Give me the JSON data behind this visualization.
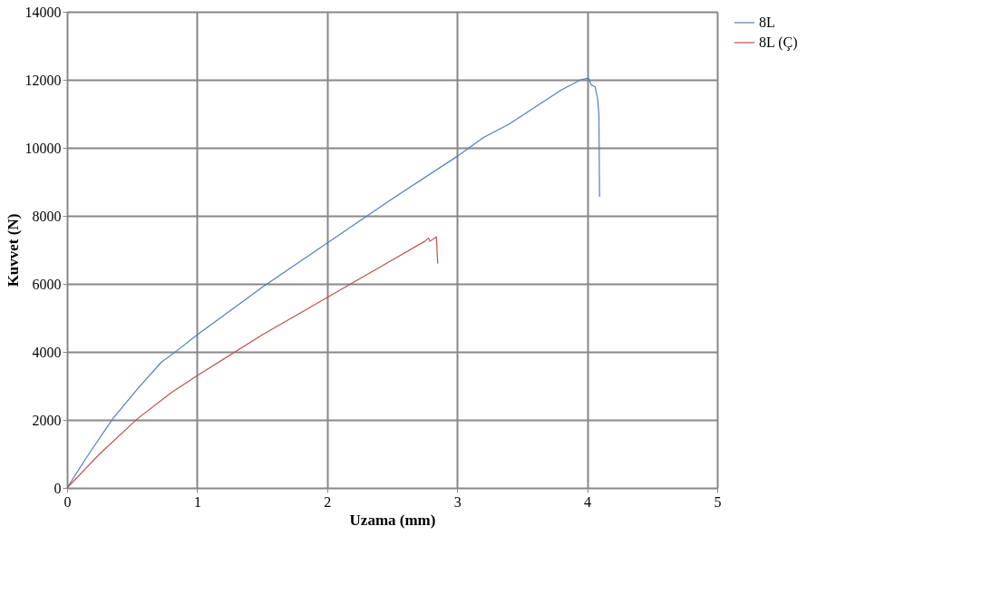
{
  "chart_data": {
    "type": "line",
    "xlabel": "Uzama (mm)",
    "ylabel": "Kuvvet (N)",
    "xlim": [
      0,
      5
    ],
    "xticks": [
      0,
      1,
      2,
      3,
      4,
      5
    ],
    "ylim": [
      0,
      14000
    ],
    "yticks": [
      0,
      2000,
      4000,
      6000,
      8000,
      10000,
      12000,
      14000
    ],
    "grid": true,
    "legend": "right",
    "line_style": "solid",
    "marker": "none",
    "series": [
      {
        "name": "8L",
        "color": "#4f81bd",
        "x": [
          0,
          0.15,
          0.35,
          0.55,
          0.725,
          0.85,
          1.0,
          1.5,
          2.0,
          2.5,
          3.0,
          3.2,
          3.4,
          3.6,
          3.8,
          3.95,
          4.01,
          4.03,
          4.06,
          4.08,
          4.09,
          4.09,
          4.095
        ],
        "values": [
          0,
          900,
          2030,
          2950,
          3700,
          4050,
          4500,
          5900,
          7200,
          8500,
          9750,
          10300,
          10700,
          11200,
          11700,
          12000,
          12050,
          11850,
          11800,
          11440,
          10990,
          10830,
          8560
        ]
      },
      {
        "name": "8L (Ç)",
        "color": "#c0504d",
        "x": [
          0,
          0.25,
          0.54,
          0.8,
          1.0,
          1.5,
          2.0,
          2.5,
          2.75,
          2.78,
          2.79,
          2.84,
          2.85
        ],
        "values": [
          0,
          1000,
          2030,
          2800,
          3300,
          4500,
          5600,
          6700,
          7250,
          7350,
          7250,
          7380,
          6600
        ]
      }
    ]
  }
}
